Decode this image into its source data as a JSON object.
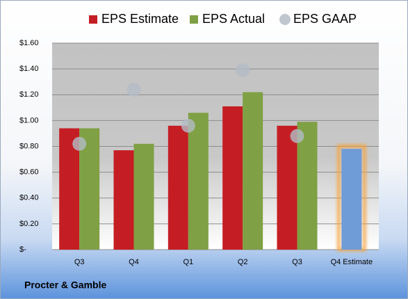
{
  "chart_data": {
    "type": "bar",
    "categories": [
      "Q3",
      "Q4",
      "Q1",
      "Q2",
      "Q3",
      "Q4 Estimate"
    ],
    "series": [
      {
        "name": "EPS Estimate",
        "color": "#c41e24",
        "values": [
          0.94,
          0.77,
          0.96,
          1.11,
          0.96,
          0.78
        ],
        "point_colors": [
          "#c41e24",
          "#c41e24",
          "#c41e24",
          "#c41e24",
          "#c41e24",
          "#6f9bd6"
        ]
      },
      {
        "name": "EPS Actual",
        "color": "#7fa044",
        "values": [
          0.94,
          0.82,
          1.06,
          1.22,
          0.99,
          null
        ]
      },
      {
        "name": "EPS GAAP",
        "color": "#b4bcc6",
        "mark": "dot",
        "values": [
          0.82,
          1.24,
          0.96,
          1.39,
          0.88,
          null
        ]
      }
    ],
    "ylim": [
      0,
      1.6
    ],
    "yticks": [
      {
        "value": 0,
        "label": "$-"
      },
      {
        "value": 0.2,
        "label": "$0.20"
      },
      {
        "value": 0.4,
        "label": "$0.40"
      },
      {
        "value": 0.6,
        "label": "$0.60"
      },
      {
        "value": 0.8,
        "label": "$0.80"
      },
      {
        "value": 1.0,
        "label": "$1.00"
      },
      {
        "value": 1.2,
        "label": "$1.20"
      },
      {
        "value": 1.4,
        "label": "$1.40"
      },
      {
        "value": 1.6,
        "label": "$1.60"
      }
    ],
    "grid": true,
    "footer": "Procter & Gamble"
  }
}
